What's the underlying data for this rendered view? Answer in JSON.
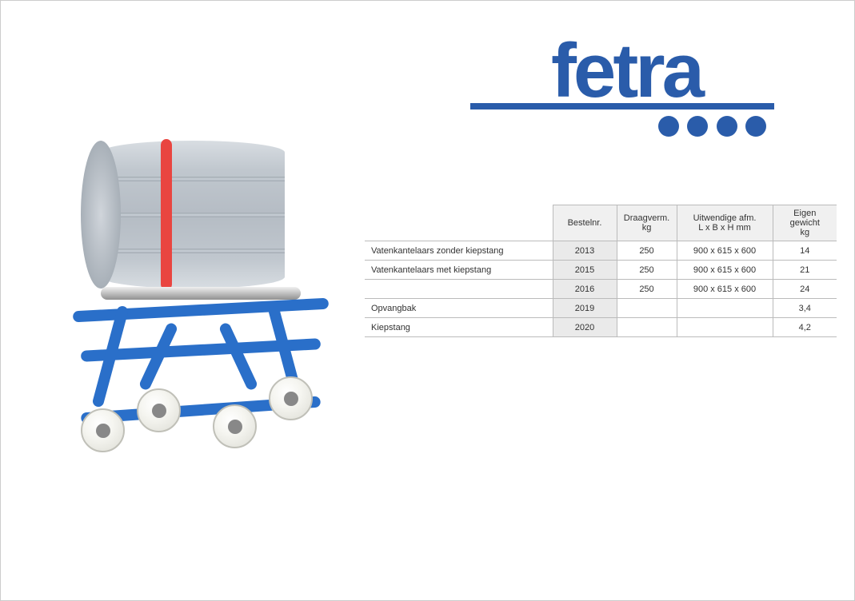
{
  "logo": {
    "text": "fetra",
    "color": "#2a5caa",
    "dot_count": 4
  },
  "table": {
    "headers": {
      "label": "",
      "bestelnr": "Bestelnr.",
      "draagverm": "Draagverm.",
      "draagverm_unit": "kg",
      "uitwendige": "Uitwendige afm.",
      "uitwendige_unit": "L x B x H mm",
      "eigen": "Eigen gewicht",
      "eigen_unit": "kg"
    },
    "rows": [
      {
        "label": "Vatenkantelaars zonder kiepstang",
        "bestelnr": "2013",
        "draagverm": "250",
        "uitwendige": "900 x 615 x 600",
        "eigen": "14"
      },
      {
        "label": "Vatenkantelaars met kiepstang",
        "bestelnr": "2015",
        "draagverm": "250",
        "uitwendige": "900 x 615 x 600",
        "eigen": "21"
      },
      {
        "label": "",
        "bestelnr": "2016",
        "draagverm": "250",
        "uitwendige": "900 x 615 x 600",
        "eigen": "24"
      },
      {
        "label": "Opvangbak",
        "bestelnr": "2019",
        "draagverm": "",
        "uitwendige": "",
        "eigen": "3,4"
      },
      {
        "label": "Kiepstang",
        "bestelnr": "2020",
        "draagverm": "",
        "uitwendige": "",
        "eigen": "4,2"
      }
    ]
  },
  "colors": {
    "brand": "#2a5caa",
    "frame": "#2a6fc9",
    "drum": "#b5bcc4",
    "strap": "#e94540",
    "table_border": "#bbbbbb",
    "table_header_bg": "#f0f0f0",
    "table_bestel_bg": "#eaeaea"
  }
}
